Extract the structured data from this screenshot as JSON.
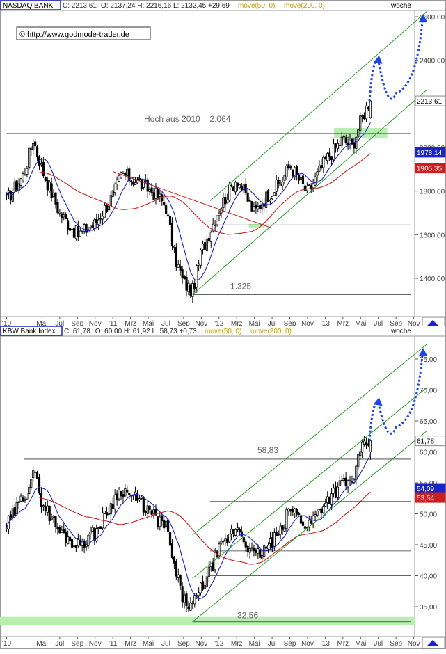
{
  "panels": [
    {
      "id": "nasdaq",
      "name": "NASDAQ BANK",
      "close_label": "C: 2213,61",
      "ohlc_text": "O: 2137,24  H: 2216,16  L: 2132,45  +29,69",
      "ma50_label": "move(50, 0)",
      "ma200_label": "move(200, 0)",
      "period_label": "woche",
      "url_text": "© http://www.godmode-trader.de",
      "annotations": [
        "Hoch aus 2010  =  2.064",
        "1.325"
      ],
      "price_tags": [
        "2213,61",
        "1978,14",
        "1905,35"
      ],
      "y_ticks": [
        "2600,00",
        "2400,00",
        "2000,00",
        "1800,00",
        "1600,00",
        "1400,00"
      ],
      "x_ticks": [
        "'10",
        "Mai",
        "Jul",
        "Sep",
        "Nov",
        "'11",
        "Mrz",
        "Mai",
        "Jul",
        "Sep",
        "Nov",
        "'12",
        "Mrz",
        "Mai",
        "Jul",
        "Sep",
        "Nov",
        "'13",
        "Mrz",
        "Mai",
        "Jul",
        "Sep",
        "Nov"
      ]
    },
    {
      "id": "kbw",
      "name": "KBW Bank Index",
      "close_label": "C: 61,78",
      "ohlc_text": "O: 60,00  H: 61,92  L: 58,73  +0,73",
      "ma50_label": "move(50, 0)",
      "ma200_label": "move(200, 0)",
      "period_label": "woche",
      "annotations": [
        "58,83",
        "32,56"
      ],
      "price_tags": [
        "61,78",
        "54,09",
        "53,54"
      ],
      "y_ticks": [
        "75,00",
        "70,00",
        "65,00",
        "60,00",
        "55,00",
        "50,00",
        "45,00",
        "40,00",
        "35,00"
      ],
      "x_ticks": [
        "'10",
        "Mai",
        "Jul",
        "Sep",
        "Nov",
        "'11",
        "Mrz",
        "Mai",
        "Jul",
        "Sep",
        "Nov",
        "'12",
        "Mrz",
        "Mai",
        "Jul",
        "Sep",
        "Nov",
        "'13",
        "Mrz",
        "Mai",
        "Jul",
        "Sep",
        "Nov"
      ]
    }
  ],
  "colors": {
    "candle": "#000000",
    "ma50": "#1a24c8",
    "ma200": "#cc2020",
    "channel": "#2aa02a",
    "projection": "#1e46e6",
    "support_zone": "#b8eeb0",
    "label_gold": "#c8a000",
    "tag_blue": "#1a24c8",
    "tag_red": "#cc2020"
  },
  "chart_data": [
    {
      "type": "candlestick",
      "title": "NASDAQ BANK",
      "period": "woche",
      "ylim": [
        1280,
        2650
      ],
      "x_range": [
        "2010-01",
        "2013-12"
      ],
      "last": {
        "open": 2137.24,
        "high": 2216.16,
        "low": 2132.45,
        "close": 2213.61,
        "change": 29.69
      },
      "ma50_last": 1978.14,
      "ma200_last": 1905.35,
      "levels": {
        "high_2010": 2064,
        "low_2011": 1325
      },
      "close_path": [
        {
          "date": "2010-01",
          "close": 1760
        },
        {
          "date": "2010-03",
          "close": 1880
        },
        {
          "date": "2010-04",
          "close": 2040
        },
        {
          "date": "2010-05",
          "close": 1900
        },
        {
          "date": "2010-07",
          "close": 1700
        },
        {
          "date": "2010-09",
          "close": 1600
        },
        {
          "date": "2010-11",
          "close": 1650
        },
        {
          "date": "2011-01",
          "close": 1780
        },
        {
          "date": "2011-02",
          "close": 1880
        },
        {
          "date": "2011-04",
          "close": 1840
        },
        {
          "date": "2011-06",
          "close": 1780
        },
        {
          "date": "2011-07",
          "close": 1730
        },
        {
          "date": "2011-08",
          "close": 1500
        },
        {
          "date": "2011-09",
          "close": 1380
        },
        {
          "date": "2011-10",
          "close": 1340
        },
        {
          "date": "2011-11",
          "close": 1520
        },
        {
          "date": "2011-12",
          "close": 1620
        },
        {
          "date": "2012-01",
          "close": 1720
        },
        {
          "date": "2012-03",
          "close": 1860
        },
        {
          "date": "2012-05",
          "close": 1700
        },
        {
          "date": "2012-06",
          "close": 1760
        },
        {
          "date": "2012-08",
          "close": 1840
        },
        {
          "date": "2012-09",
          "close": 1920
        },
        {
          "date": "2012-11",
          "close": 1790
        },
        {
          "date": "2013-01",
          "close": 1940
        },
        {
          "date": "2013-03",
          "close": 2040
        },
        {
          "date": "2013-04",
          "close": 2000
        },
        {
          "date": "2013-05",
          "close": 2120
        },
        {
          "date": "2013-06",
          "close": 2213.61
        }
      ],
      "projection": [
        {
          "date": "2013-06",
          "value": 2213.61
        },
        {
          "date": "2013-07",
          "value": 2400
        },
        {
          "date": "2013-09",
          "value": 2250
        },
        {
          "date": "2013-12",
          "value": 2590
        }
      ]
    },
    {
      "type": "candlestick",
      "title": "KBW Bank Index",
      "period": "woche",
      "ylim": [
        31,
        78
      ],
      "x_range": [
        "2010-01",
        "2013-12"
      ],
      "last": {
        "open": 60.0,
        "high": 61.92,
        "low": 58.73,
        "close": 61.78,
        "change": 0.73
      },
      "ma50_last": 54.09,
      "ma200_last": 53.54,
      "levels": {
        "high_2010": 58.83,
        "low_2011": 32.56
      },
      "close_path": [
        {
          "date": "2010-01",
          "close": 48
        },
        {
          "date": "2010-03",
          "close": 53
        },
        {
          "date": "2010-04",
          "close": 57
        },
        {
          "date": "2010-05",
          "close": 52
        },
        {
          "date": "2010-07",
          "close": 47
        },
        {
          "date": "2010-09",
          "close": 45
        },
        {
          "date": "2010-11",
          "close": 47
        },
        {
          "date": "2011-01",
          "close": 52
        },
        {
          "date": "2011-02",
          "close": 54
        },
        {
          "date": "2011-04",
          "close": 52
        },
        {
          "date": "2011-06",
          "close": 49
        },
        {
          "date": "2011-07",
          "close": 48
        },
        {
          "date": "2011-08",
          "close": 41
        },
        {
          "date": "2011-09",
          "close": 36
        },
        {
          "date": "2011-10",
          "close": 35
        },
        {
          "date": "2011-11",
          "close": 38
        },
        {
          "date": "2011-12",
          "close": 41
        },
        {
          "date": "2012-01",
          "close": 44
        },
        {
          "date": "2012-03",
          "close": 48
        },
        {
          "date": "2012-05",
          "close": 43
        },
        {
          "date": "2012-06",
          "close": 44
        },
        {
          "date": "2012-08",
          "close": 47
        },
        {
          "date": "2012-09",
          "close": 51
        },
        {
          "date": "2012-11",
          "close": 48
        },
        {
          "date": "2013-01",
          "close": 52
        },
        {
          "date": "2013-03",
          "close": 55
        },
        {
          "date": "2013-04",
          "close": 55
        },
        {
          "date": "2013-05",
          "close": 60
        },
        {
          "date": "2013-06",
          "close": 61.78
        }
      ],
      "projection": [
        {
          "date": "2013-06",
          "value": 61.78
        },
        {
          "date": "2013-07",
          "value": 68
        },
        {
          "date": "2013-09",
          "value": 64
        },
        {
          "date": "2013-12",
          "value": 76
        }
      ]
    }
  ]
}
